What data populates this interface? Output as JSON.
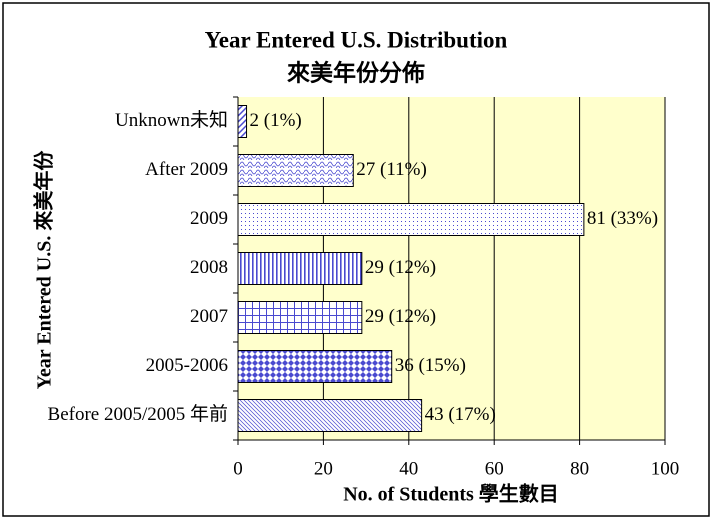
{
  "chart_data": {
    "type": "bar",
    "orientation": "horizontal",
    "title": "Year Entered U.S. Distribution",
    "subtitle": "來美年份分佈",
    "x_label": "No. of Students 學生數目",
    "y_label": "Year Entered U.S. 來美年份",
    "categories": [
      "Unknown未知",
      "After 2009",
      "2009",
      "2008",
      "2007",
      "2005-2006",
      "Before 2005/2005 年前"
    ],
    "values": [
      2,
      27,
      81,
      29,
      29,
      36,
      43
    ],
    "value_labels": [
      "2 (1%)",
      "27 (11%)",
      "81 (33%)",
      "29 (12%)",
      "29 (12%)",
      "36 (15%)",
      "43 (17%)"
    ],
    "color": "#4a4ad0",
    "plot_background": "#ffffcc",
    "xlim": [
      0,
      100
    ],
    "xticks": [
      0,
      20,
      40,
      60,
      80,
      100
    ],
    "grid": true
  }
}
